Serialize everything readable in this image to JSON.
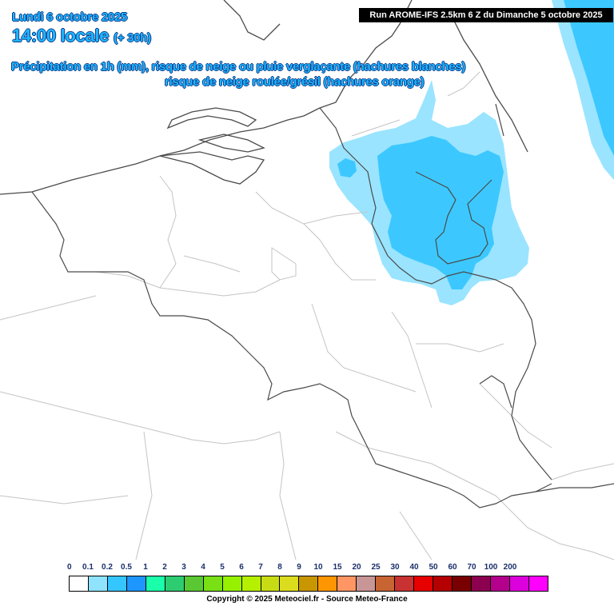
{
  "header": {
    "date": "Lundi 6 octobre 2025",
    "time": "14:00 locale",
    "lead": "(+ 30h)",
    "run": "Run AROME-IFS 2.5km 6 Z du Dimanche 5 octobre 2025",
    "title_line1": "Précipitation en 1h (mm), risque de neige ou pluie verglaçante (hachures blanches)",
    "title_line2": "risque de neige roulée/grésil (hachures orange)"
  },
  "legend": {
    "labels": [
      "0",
      "0.1",
      "0.2",
      "0.5",
      "1",
      "2",
      "3",
      "4",
      "5",
      "6",
      "7",
      "8",
      "9",
      "10",
      "15",
      "20",
      "25",
      "30",
      "40",
      "50",
      "60",
      "70",
      "100",
      "200"
    ],
    "colors": [
      "#ffffff",
      "#8fe3ff",
      "#35c6ff",
      "#1e96ff",
      "#19ffaa",
      "#2ecc71",
      "#5ac832",
      "#78e014",
      "#96f000",
      "#b4f000",
      "#c8dc14",
      "#dcdc1e",
      "#c89600",
      "#ff9600",
      "#ff9664",
      "#c89696",
      "#c86432",
      "#c83232",
      "#e60000",
      "#b40000",
      "#780000",
      "#8c0050",
      "#b4008c",
      "#dc00dc",
      "#ff00ff"
    ]
  },
  "copyright": "Copyright © 2025 Meteociel.fr - Source Meteo-France",
  "colors": {
    "precip_light": "#9ae4ff",
    "precip_mid": "#3cc8ff",
    "border": "#4a4a4a",
    "admin": "#c4c4c4"
  }
}
